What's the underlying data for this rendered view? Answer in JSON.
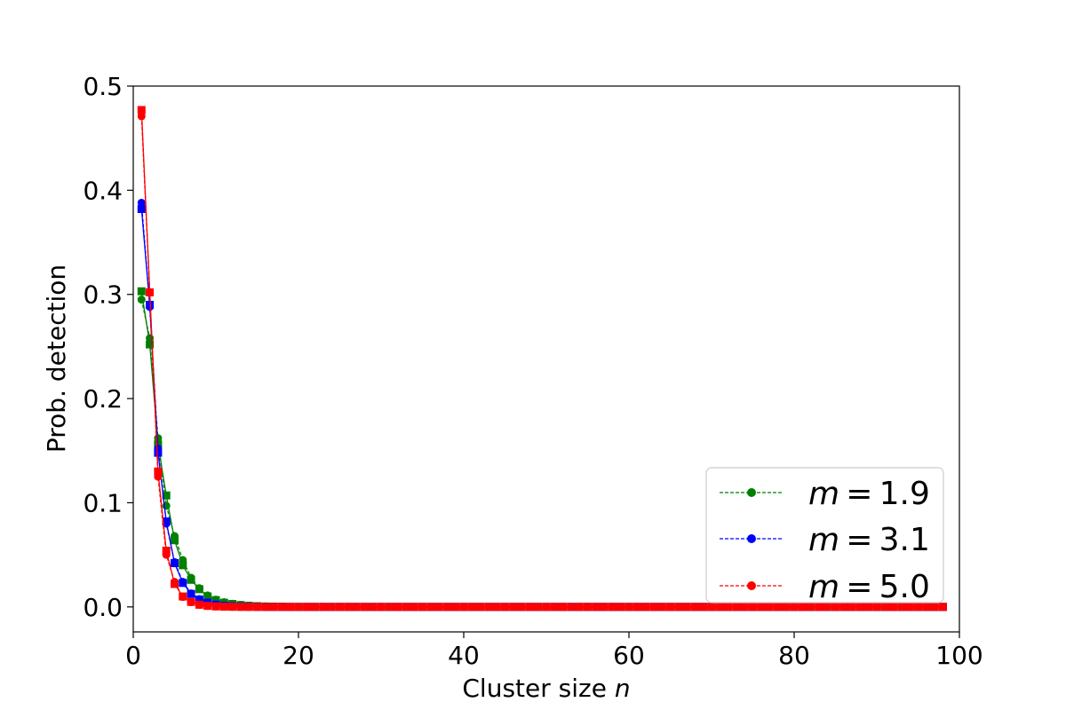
{
  "chart_data": {
    "type": "line",
    "xlabel": "Cluster size",
    "xlabel_var": "n",
    "ylabel": "Prob. detection",
    "xlim": [
      0,
      100
    ],
    "ylim": [
      -0.024,
      0.5
    ],
    "xticks": [
      0,
      20,
      40,
      60,
      80,
      100
    ],
    "yticks": [
      0.0,
      0.1,
      0.2,
      0.3,
      0.4,
      0.5
    ],
    "xtick_labels": [
      "0",
      "20",
      "40",
      "60",
      "80",
      "100"
    ],
    "ytick_labels": [
      "0.0",
      "0.1",
      "0.2",
      "0.3",
      "0.4",
      "0.5"
    ],
    "x_max_point": 98,
    "grid": false,
    "legend_position": "lower-right",
    "series": [
      {
        "name": "m = 1.9",
        "legend_var": "m",
        "legend_value": "1.9",
        "color": "#008000",
        "linestyle": "dashed",
        "circle_values": [
          0.295,
          0.258,
          0.162,
          0.097,
          0.068,
          0.045,
          0.028,
          0.018,
          0.011,
          0.007,
          0.0045,
          0.003,
          0.002,
          0.0012,
          0.0008,
          0.0005,
          0.0003,
          0.0002
        ],
        "square_values": [
          0.303,
          0.252,
          0.156,
          0.107,
          0.064,
          0.04,
          0.026,
          0.017,
          0.01,
          0.0065,
          0.004,
          0.0028,
          0.0018,
          0.0011,
          0.0007,
          0.0004,
          0.0003,
          0.0002
        ]
      },
      {
        "name": "m = 3.1",
        "legend_var": "m",
        "legend_value": "3.1",
        "color": "#0000ff",
        "linestyle": "dashed",
        "circle_values": [
          0.388,
          0.288,
          0.152,
          0.08,
          0.043,
          0.024,
          0.013,
          0.0075,
          0.0042,
          0.0024,
          0.0013,
          0.0007,
          0.0004,
          0.0002,
          0.0001
        ],
        "square_values": [
          0.382,
          0.29,
          0.148,
          0.082,
          0.042,
          0.023,
          0.0125,
          0.007,
          0.004,
          0.0022,
          0.0012,
          0.0007,
          0.0004,
          0.0002,
          0.0001
        ]
      },
      {
        "name": "m = 5.0",
        "legend_var": "m",
        "legend_value": "5.0",
        "color": "#ff0000",
        "linestyle": "dashed",
        "circle_values": [
          0.471,
          0.302,
          0.125,
          0.05,
          0.024,
          0.0095,
          0.0045,
          0.002,
          0.0009,
          0.0004,
          0.0002,
          0.0001
        ],
        "square_values": [
          0.477,
          0.302,
          0.13,
          0.054,
          0.022,
          0.01,
          0.0048,
          0.0021,
          0.001,
          0.0005,
          0.0002,
          0.0001
        ]
      }
    ]
  }
}
